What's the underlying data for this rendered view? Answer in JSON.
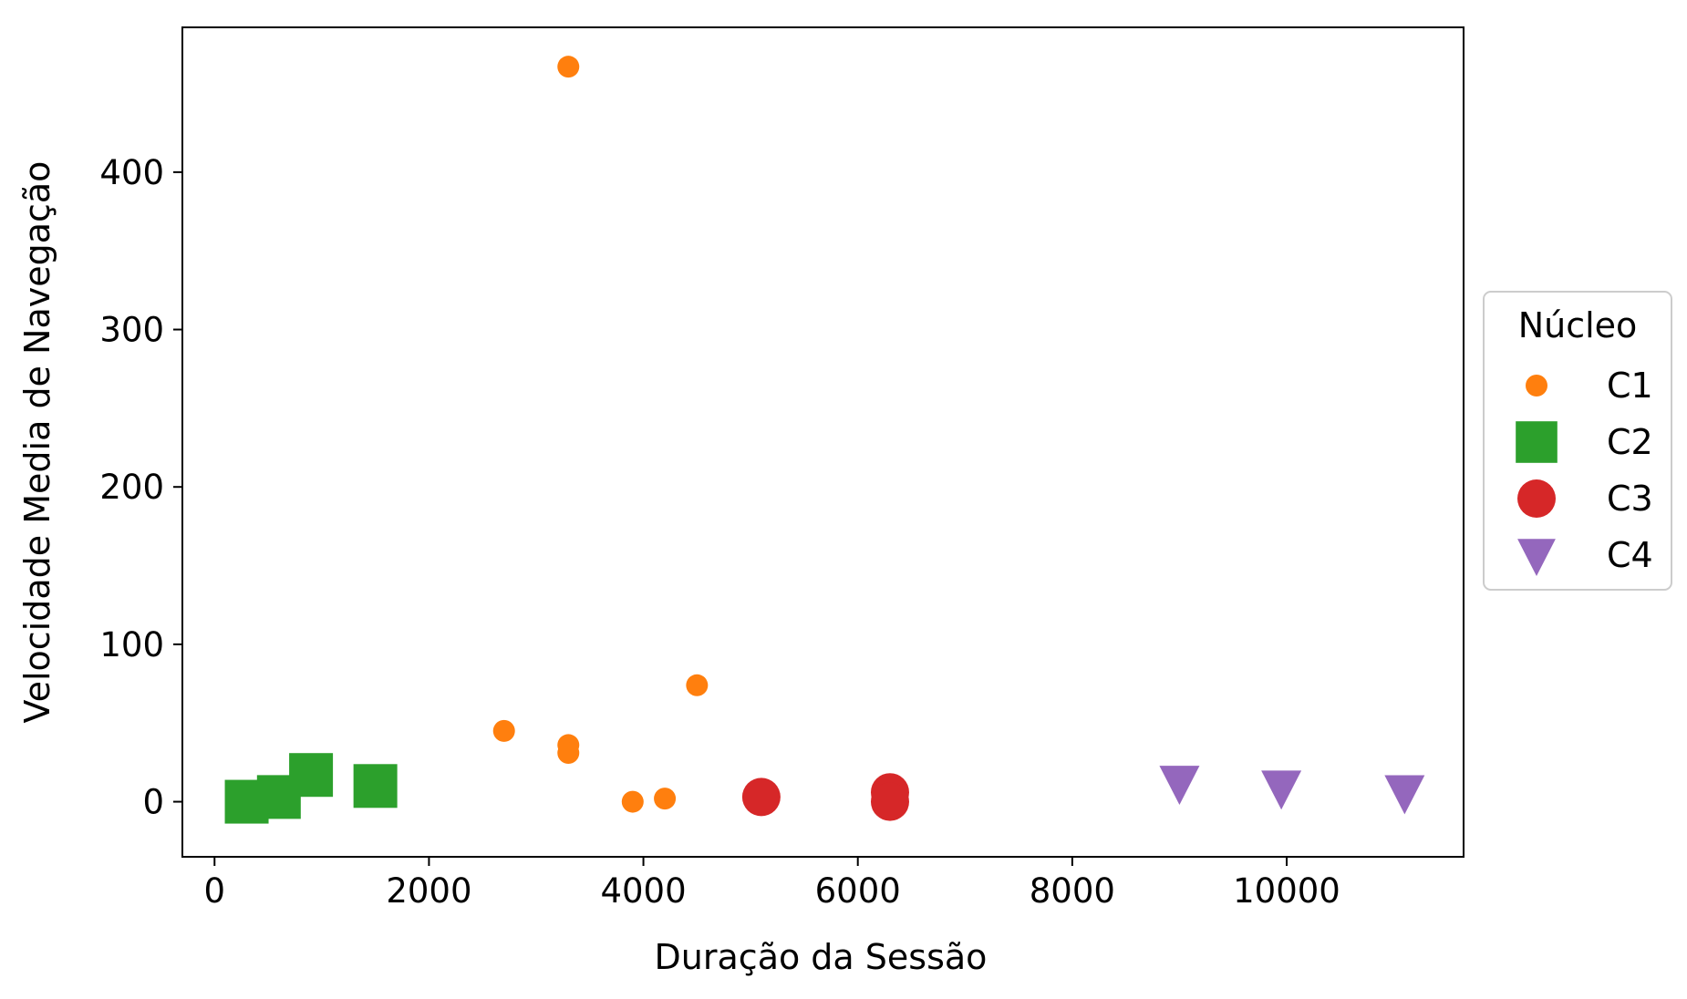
{
  "chart_data": {
    "type": "scatter",
    "title": "",
    "xlabel": "Duração da Sessão",
    "ylabel": "Velocidade Media de Navegação",
    "xlim": [
      -300,
      11650
    ],
    "ylim": [
      -35,
      492
    ],
    "xticks": [
      0,
      2000,
      4000,
      6000,
      8000,
      10000
    ],
    "yticks": [
      0,
      100,
      200,
      300,
      400
    ],
    "grid": false,
    "legend": {
      "title": "Núcleo",
      "placement": "center-right-outside"
    },
    "series": [
      {
        "name": "C1",
        "marker": "circle-small",
        "color": "#ff7f0e",
        "points": [
          [
            3300,
            467
          ],
          [
            2700,
            45
          ],
          [
            3300,
            36
          ],
          [
            3300,
            31
          ],
          [
            4500,
            74
          ],
          [
            3900,
            0
          ],
          [
            4200,
            2
          ]
        ]
      },
      {
        "name": "C2",
        "marker": "square",
        "color": "#2ca02c",
        "points": [
          [
            300,
            0
          ],
          [
            600,
            3
          ],
          [
            900,
            17
          ],
          [
            1500,
            10
          ]
        ]
      },
      {
        "name": "C3",
        "marker": "circle-large",
        "color": "#d62728",
        "points": [
          [
            5100,
            3
          ],
          [
            6300,
            6
          ],
          [
            6300,
            0
          ]
        ]
      },
      {
        "name": "C4",
        "marker": "triangle-down",
        "color": "#9467bd",
        "points": [
          [
            9000,
            12
          ],
          [
            9950,
            9
          ],
          [
            11100,
            6
          ]
        ]
      }
    ]
  }
}
